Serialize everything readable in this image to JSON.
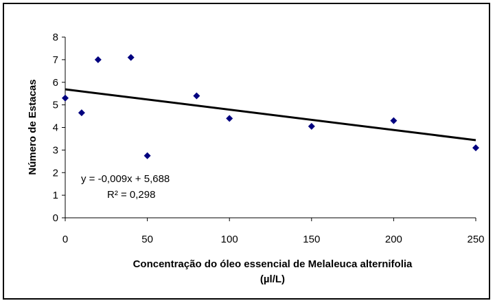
{
  "chart_data": {
    "type": "scatter",
    "title": "",
    "xlabel_line1": "Concentração do óleo essencial de Melaleuca alternifolia",
    "xlabel_line2": "(µl/L)",
    "ylabel": "Número de Estacas",
    "xlim": [
      0,
      250
    ],
    "ylim": [
      0,
      8
    ],
    "xticks": [
      0,
      50,
      100,
      150,
      200,
      250
    ],
    "yticks": [
      0,
      1,
      2,
      3,
      4,
      5,
      6,
      7,
      8
    ],
    "grid": false,
    "legend": "none",
    "marker_color": "#00007f",
    "trendline_color": "#000000",
    "series": [
      {
        "points": [
          {
            "x": 0,
            "y": 5.3
          },
          {
            "x": 10,
            "y": 4.65
          },
          {
            "x": 20,
            "y": 7.0
          },
          {
            "x": 40,
            "y": 7.1
          },
          {
            "x": 50,
            "y": 2.75
          },
          {
            "x": 80,
            "y": 5.4
          },
          {
            "x": 100,
            "y": 4.4
          },
          {
            "x": 150,
            "y": 4.05
          },
          {
            "x": 200,
            "y": 4.3
          },
          {
            "x": 250,
            "y": 3.1
          }
        ]
      }
    ],
    "trendline": {
      "slope": -0.009,
      "intercept": 5.688,
      "x_from": 0,
      "x_to": 250
    },
    "equation_text": "y = -0,009x + 5,688",
    "r2_text": "R² = 0,298"
  }
}
